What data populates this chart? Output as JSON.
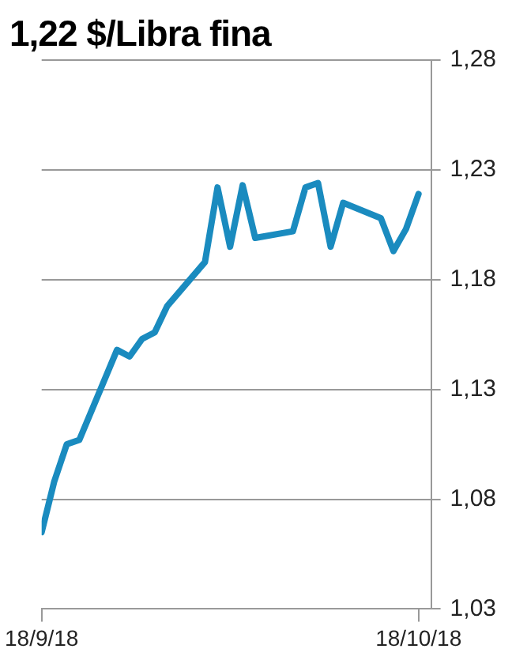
{
  "chart_data": {
    "type": "line",
    "title": "1,22 $/Libra fina",
    "x": [
      "--09-18",
      "--09-19",
      "--09-20",
      "--09-21",
      "--09-24",
      "--09-25",
      "--09-26",
      "--09-27",
      "--09-28",
      "--10-01",
      "--10-02",
      "--10-03",
      "--10-04",
      "--10-05",
      "--10-08",
      "--10-09",
      "--10-10",
      "--10-11",
      "--10-12",
      "--10-15",
      "--10-16",
      "--10-17",
      "--10-18"
    ],
    "series": [
      {
        "color": "#1a8bbf",
        "values": [
          1.065,
          1.088,
          1.105,
          1.107,
          1.148,
          1.145,
          1.153,
          1.156,
          1.168,
          1.188,
          1.222,
          1.195,
          1.223,
          1.199,
          1.202,
          1.222,
          1.224,
          1.195,
          1.215,
          1.208,
          1.193,
          1.203,
          1.219
        ]
      }
    ],
    "xlim": [
      "--09-18",
      "--10-19"
    ],
    "xticks": [
      {
        "value": "--09-18",
        "label": "18/9/18"
      },
      {
        "value": "--10-18",
        "label": "18/10/18"
      }
    ],
    "ylim": [
      1.03,
      1.28
    ],
    "yticks": [
      {
        "value": 1.03,
        "label": "1,03"
      },
      {
        "value": 1.08,
        "label": "1,08"
      },
      {
        "value": 1.13,
        "label": "1,13"
      },
      {
        "value": 1.18,
        "label": "1,18"
      },
      {
        "value": 1.23,
        "label": "1,23"
      },
      {
        "value": 1.28,
        "label": "1,28"
      }
    ],
    "grid": "y",
    "legend": false,
    "marker": "none",
    "line_style": "solid"
  }
}
